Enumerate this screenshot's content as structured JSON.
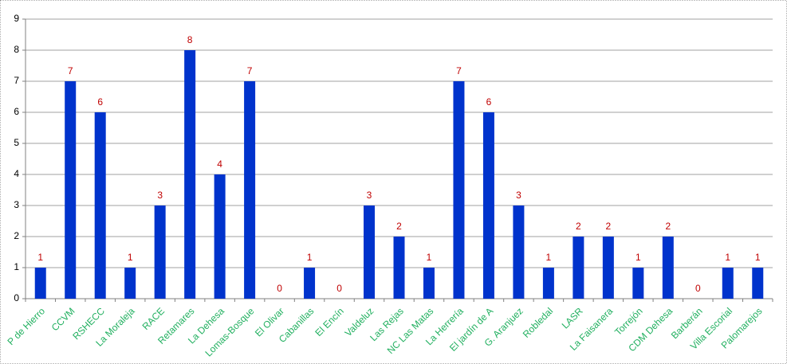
{
  "chart_data": {
    "type": "bar",
    "categories": [
      "P de Hierro",
      "CCVM",
      "RSHECC",
      "La Moraleja",
      "RACE",
      "Retamares",
      "La Dehesa",
      "Lomas-Bosque",
      "El Olivar",
      "Cabanillas",
      "El Encín",
      "Valdeluz",
      "Las Rejas",
      "NC Las Matas",
      "La Herrería",
      "El jardín de A",
      "G. Aranjuez",
      "Robledal",
      "LASR",
      "La Faisanera",
      "Torrejón",
      "CDM Dehesa",
      "Barberán",
      "Villa Escorial",
      "Palomarejos"
    ],
    "values": [
      1,
      7,
      6,
      1,
      3,
      8,
      4,
      7,
      0,
      1,
      0,
      3,
      2,
      1,
      7,
      6,
      3,
      1,
      2,
      2,
      1,
      2,
      0,
      1,
      1
    ],
    "color": "#0033cc",
    "label_color": "#c00000",
    "category_color": "#22b060",
    "ylim": [
      0,
      9
    ],
    "yticks": [
      0,
      1,
      2,
      3,
      4,
      5,
      6,
      7,
      8,
      9
    ],
    "grid": true
  }
}
